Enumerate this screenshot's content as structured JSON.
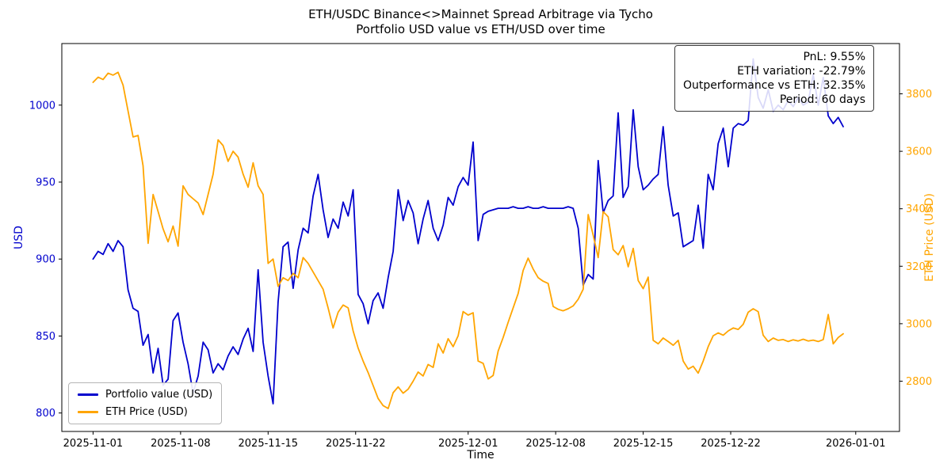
{
  "chart_data": {
    "type": "line",
    "title": "ETH/USDC Binance<>Mainnet Spread Arbitrage via Tycho",
    "subtitle": "Portfolio USD value vs ETH/USD over time",
    "xlabel": "Time",
    "ylabel_left": "USD",
    "ylabel_right": "ETH Price (USD)",
    "x_unit": "days since 2025-11-01",
    "x_tick_days": [
      0,
      7,
      14,
      21,
      30,
      37,
      44,
      51,
      61
    ],
    "x_tick_labels": [
      "2025-11-01",
      "2025-11-08",
      "2025-11-15",
      "2025-11-22",
      "2025-12-01",
      "2025-12-08",
      "2025-12-15",
      "2025-12-22",
      "2026-01-01"
    ],
    "y_left_ticks": [
      800,
      850,
      900,
      950,
      1000
    ],
    "y_right_ticks": [
      2800,
      3000,
      3200,
      3400,
      3600,
      3800
    ],
    "xlim_days": [
      -2.5,
      64.5
    ],
    "ylim_left": [
      788,
      1040
    ],
    "ylim_right": [
      2625,
      3975
    ],
    "grid": false,
    "legend_position": "lower left",
    "colors": {
      "portfolio": "#0000cd",
      "eth": "#ffa500"
    },
    "annotation_lines": [
      "PnL: 9.55%",
      "ETH variation: -22.79%",
      "Outperformance vs ETH: 32.35%",
      "Period: 60 days"
    ],
    "stats": {
      "pnl_pct": 9.55,
      "eth_variation_pct": -22.79,
      "outperformance_vs_eth_pct": 32.35,
      "period_days": 60
    },
    "series": [
      {
        "id": "portfolio",
        "name": "Portfolio value (USD)",
        "axis": "left",
        "color": "#0000cd",
        "x_start": 0,
        "x_step": 0.4,
        "y": [
          900,
          905,
          903,
          910,
          905,
          912,
          908,
          880,
          868,
          866,
          844,
          851,
          826,
          842,
          818,
          822,
          860,
          865,
          846,
          832,
          813,
          824,
          846,
          841,
          826,
          832,
          828,
          837,
          843,
          838,
          848,
          855,
          840,
          893,
          846,
          824,
          806,
          872,
          908,
          911,
          881,
          906,
          920,
          917,
          941,
          955,
          932,
          914,
          926,
          920,
          937,
          928,
          945,
          877,
          871,
          858,
          873,
          878,
          868,
          888,
          905,
          945,
          925,
          938,
          930,
          910,
          926,
          938,
          920,
          912,
          922,
          940,
          935,
          947,
          953,
          948,
          976,
          912,
          929,
          931,
          932,
          933,
          933,
          933,
          934,
          933,
          933,
          934,
          933,
          933,
          934,
          933,
          933,
          933,
          933,
          934,
          933,
          920,
          883,
          890,
          887,
          964,
          930,
          938,
          941,
          995,
          940,
          947,
          997,
          960,
          945,
          948,
          952,
          955,
          986,
          948,
          928,
          930,
          908,
          910,
          912,
          935,
          907,
          955,
          945,
          975,
          985,
          960,
          985,
          988,
          987,
          990,
          1030,
          1005,
          998,
          1010,
          996,
          1000,
          997,
          1003,
          999,
          1005,
          1000,
          1002,
          1020,
          1000,
          1018,
          993,
          988,
          992,
          986
        ]
      },
      {
        "id": "eth-price",
        "name": "ETH Price (USD)",
        "axis": "right",
        "color": "#ffa500",
        "x_start": 0,
        "x_step": 0.4,
        "y": [
          3840,
          3858,
          3850,
          3872,
          3865,
          3875,
          3830,
          3740,
          3650,
          3655,
          3550,
          3280,
          3450,
          3390,
          3330,
          3285,
          3340,
          3270,
          3480,
          3450,
          3435,
          3420,
          3380,
          3450,
          3520,
          3640,
          3620,
          3565,
          3600,
          3580,
          3520,
          3475,
          3560,
          3480,
          3450,
          3210,
          3225,
          3130,
          3160,
          3150,
          3175,
          3160,
          3230,
          3210,
          3180,
          3150,
          3120,
          3055,
          2985,
          3040,
          3065,
          3055,
          2975,
          2915,
          2870,
          2830,
          2785,
          2740,
          2715,
          2705,
          2760,
          2780,
          2758,
          2772,
          2800,
          2832,
          2818,
          2858,
          2848,
          2930,
          2898,
          2948,
          2920,
          2958,
          3042,
          3030,
          3038,
          2870,
          2862,
          2808,
          2820,
          2905,
          2952,
          3005,
          3055,
          3105,
          3185,
          3228,
          3190,
          3160,
          3148,
          3140,
          3060,
          3050,
          3045,
          3052,
          3062,
          3085,
          3120,
          3380,
          3308,
          3230,
          3390,
          3372,
          3258,
          3240,
          3272,
          3198,
          3262,
          3150,
          3122,
          3162,
          2942,
          2930,
          2950,
          2938,
          2925,
          2942,
          2870,
          2842,
          2852,
          2828,
          2870,
          2920,
          2958,
          2968,
          2960,
          2975,
          2985,
          2980,
          2998,
          3040,
          3052,
          3042,
          2960,
          2938,
          2950,
          2942,
          2945,
          2938,
          2944,
          2940,
          2946,
          2940,
          2943,
          2938,
          2945,
          3032,
          2930,
          2952,
          2965
        ]
      }
    ]
  }
}
